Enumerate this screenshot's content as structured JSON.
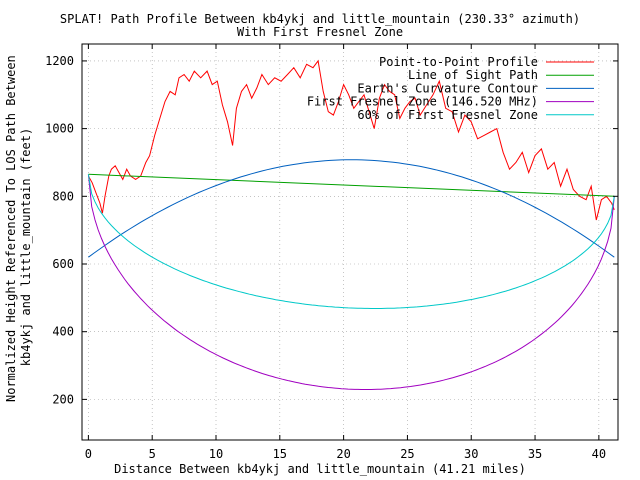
{
  "chart_data": {
    "type": "line",
    "title": "SPLAT! Path Profile Between kb4ykj and little_mountain (230.33° azimuth)",
    "subtitle": "With First Fresnel Zone",
    "xlabel": "Distance Between kb4ykj and little_mountain (41.21 miles)",
    "ylabel_line1": "Normalized Height Referenced To LOS Path Between",
    "ylabel_line2": "kb4ykj and little_mountain (feet)",
    "xlim": [
      -0.5,
      41.5
    ],
    "ylim": [
      80,
      1250
    ],
    "x_ticks": [
      "0",
      "5",
      "10",
      "15",
      "20",
      "25",
      "30",
      "35",
      "40"
    ],
    "y_ticks": [
      "200",
      "400",
      "600",
      "800",
      "1000",
      "1200"
    ],
    "grid": true,
    "legend_position": "top-right",
    "series": [
      {
        "name": "Point-to-Point Profile",
        "color": "#ff0000",
        "x": [
          0,
          0.3,
          0.6,
          0.9,
          1.1,
          1.3,
          1.6,
          1.8,
          2.1,
          2.4,
          2.7,
          3.0,
          3.3,
          3.7,
          4.1,
          4.5,
          4.8,
          5.2,
          5.6,
          6.0,
          6.4,
          6.8,
          7.1,
          7.5,
          7.9,
          8.3,
          8.8,
          9.3,
          9.7,
          10.1,
          10.5,
          10.9,
          11.3,
          11.6,
          12.0,
          12.4,
          12.8,
          13.2,
          13.6,
          14.1,
          14.6,
          15.1,
          15.6,
          16.1,
          16.6,
          17.1,
          17.6,
          18.0,
          18.4,
          18.8,
          19.2,
          19.6,
          20.0,
          20.4,
          20.8,
          21.2,
          21.6,
          22.0,
          22.4,
          22.8,
          23.2,
          23.6,
          24.0,
          24.4,
          24.8,
          25.2,
          25.6,
          26.0,
          26.5,
          27.0,
          27.5,
          28.0,
          28.5,
          29.0,
          29.5,
          30.0,
          30.5,
          31.0,
          31.5,
          32.0,
          32.5,
          33.0,
          33.5,
          34.0,
          34.5,
          35.0,
          35.5,
          36.0,
          36.5,
          37.0,
          37.5,
          38.0,
          38.5,
          39.0,
          39.4,
          39.8,
          40.2,
          40.6,
          41.0,
          41.21
        ],
        "values": [
          860,
          840,
          810,
          780,
          750,
          800,
          860,
          880,
          890,
          870,
          850,
          880,
          860,
          850,
          860,
          900,
          920,
          980,
          1030,
          1080,
          1110,
          1100,
          1150,
          1160,
          1140,
          1170,
          1150,
          1170,
          1130,
          1140,
          1070,
          1020,
          950,
          1060,
          1110,
          1130,
          1090,
          1120,
          1160,
          1130,
          1150,
          1140,
          1160,
          1180,
          1150,
          1190,
          1180,
          1200,
          1110,
          1050,
          1040,
          1080,
          1130,
          1100,
          1060,
          1080,
          1100,
          1050,
          1000,
          1090,
          1130,
          1110,
          1100,
          1030,
          1060,
          1080,
          1090,
          1040,
          1070,
          1100,
          1140,
          1060,
          1050,
          990,
          1040,
          1020,
          970,
          980,
          990,
          1000,
          930,
          880,
          900,
          930,
          870,
          920,
          940,
          880,
          900,
          830,
          880,
          820,
          800,
          790,
          830,
          730,
          790,
          800,
          780,
          760
        ]
      },
      {
        "name": "Line of Sight Path",
        "color": "#00a000",
        "x": [
          0,
          41.21
        ],
        "values": [
          865,
          800
        ]
      },
      {
        "name": "Earth's Curvature Contour",
        "color": "#0060c0",
        "curve": "parabola",
        "start": 620,
        "mid": 908,
        "end": 620
      },
      {
        "name": "First Fresnel Zone (146.520 MHz)",
        "color": "#a000c0",
        "curve": "fresnel",
        "fresnel_min": 230
      },
      {
        "name": "60% of First Fresnel Zone",
        "color": "#00c8c8",
        "curve": "fresnel",
        "fresnel_min": 470
      }
    ]
  }
}
